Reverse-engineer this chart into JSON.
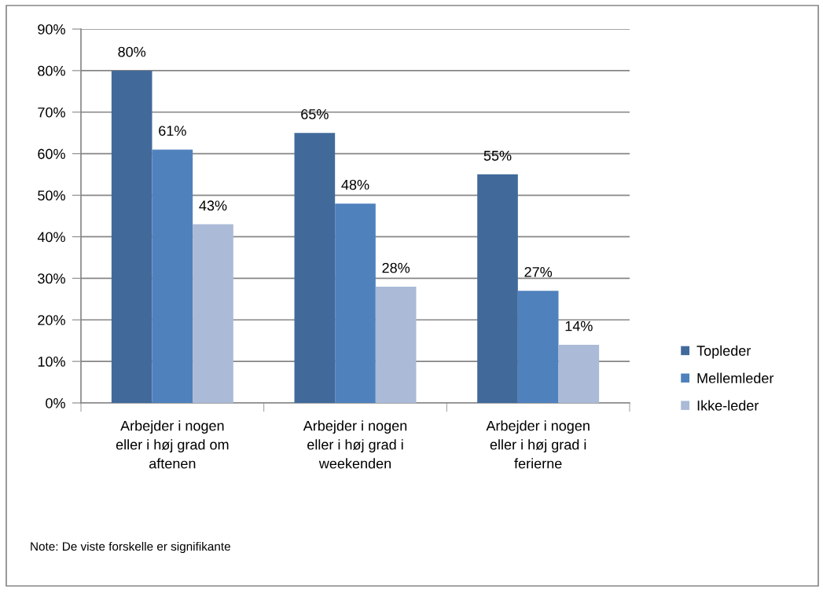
{
  "chart_data": {
    "type": "bar",
    "categories": [
      "Arbejder i nogen\neller i høj grad om\naftenen",
      "Arbejder i nogen\neller i høj grad i\nweekenden",
      "Arbejder i nogen\neller i høj grad i\nferierne"
    ],
    "series": [
      {
        "name": "Topleder",
        "color": "#416a9b",
        "values": [
          80,
          65,
          55
        ],
        "value_labels": [
          "80%",
          "65%",
          "55%"
        ]
      },
      {
        "name": "Mellemleder",
        "color": "#4f81bd",
        "values": [
          61,
          48,
          27
        ],
        "value_labels": [
          "61%",
          "48%",
          "27%"
        ]
      },
      {
        "name": "Ikke-leder",
        "color": "#aabad7",
        "values": [
          43,
          28,
          14
        ],
        "value_labels": [
          "43%",
          "28%",
          "14%"
        ]
      }
    ],
    "ylim": [
      0,
      90
    ],
    "yticks": [
      {
        "value": 0,
        "label": "0%"
      },
      {
        "value": 10,
        "label": "10%"
      },
      {
        "value": 20,
        "label": "20%"
      },
      {
        "value": 30,
        "label": "30%"
      },
      {
        "value": 40,
        "label": "40%"
      },
      {
        "value": 50,
        "label": "50%"
      },
      {
        "value": 60,
        "label": "60%"
      },
      {
        "value": 70,
        "label": "70%"
      },
      {
        "value": 80,
        "label": "80%"
      },
      {
        "value": 90,
        "label": "90%"
      }
    ],
    "grid": "y",
    "legend": "right",
    "annotations": [
      "Note: De viste forskelle er signifikante"
    ]
  }
}
